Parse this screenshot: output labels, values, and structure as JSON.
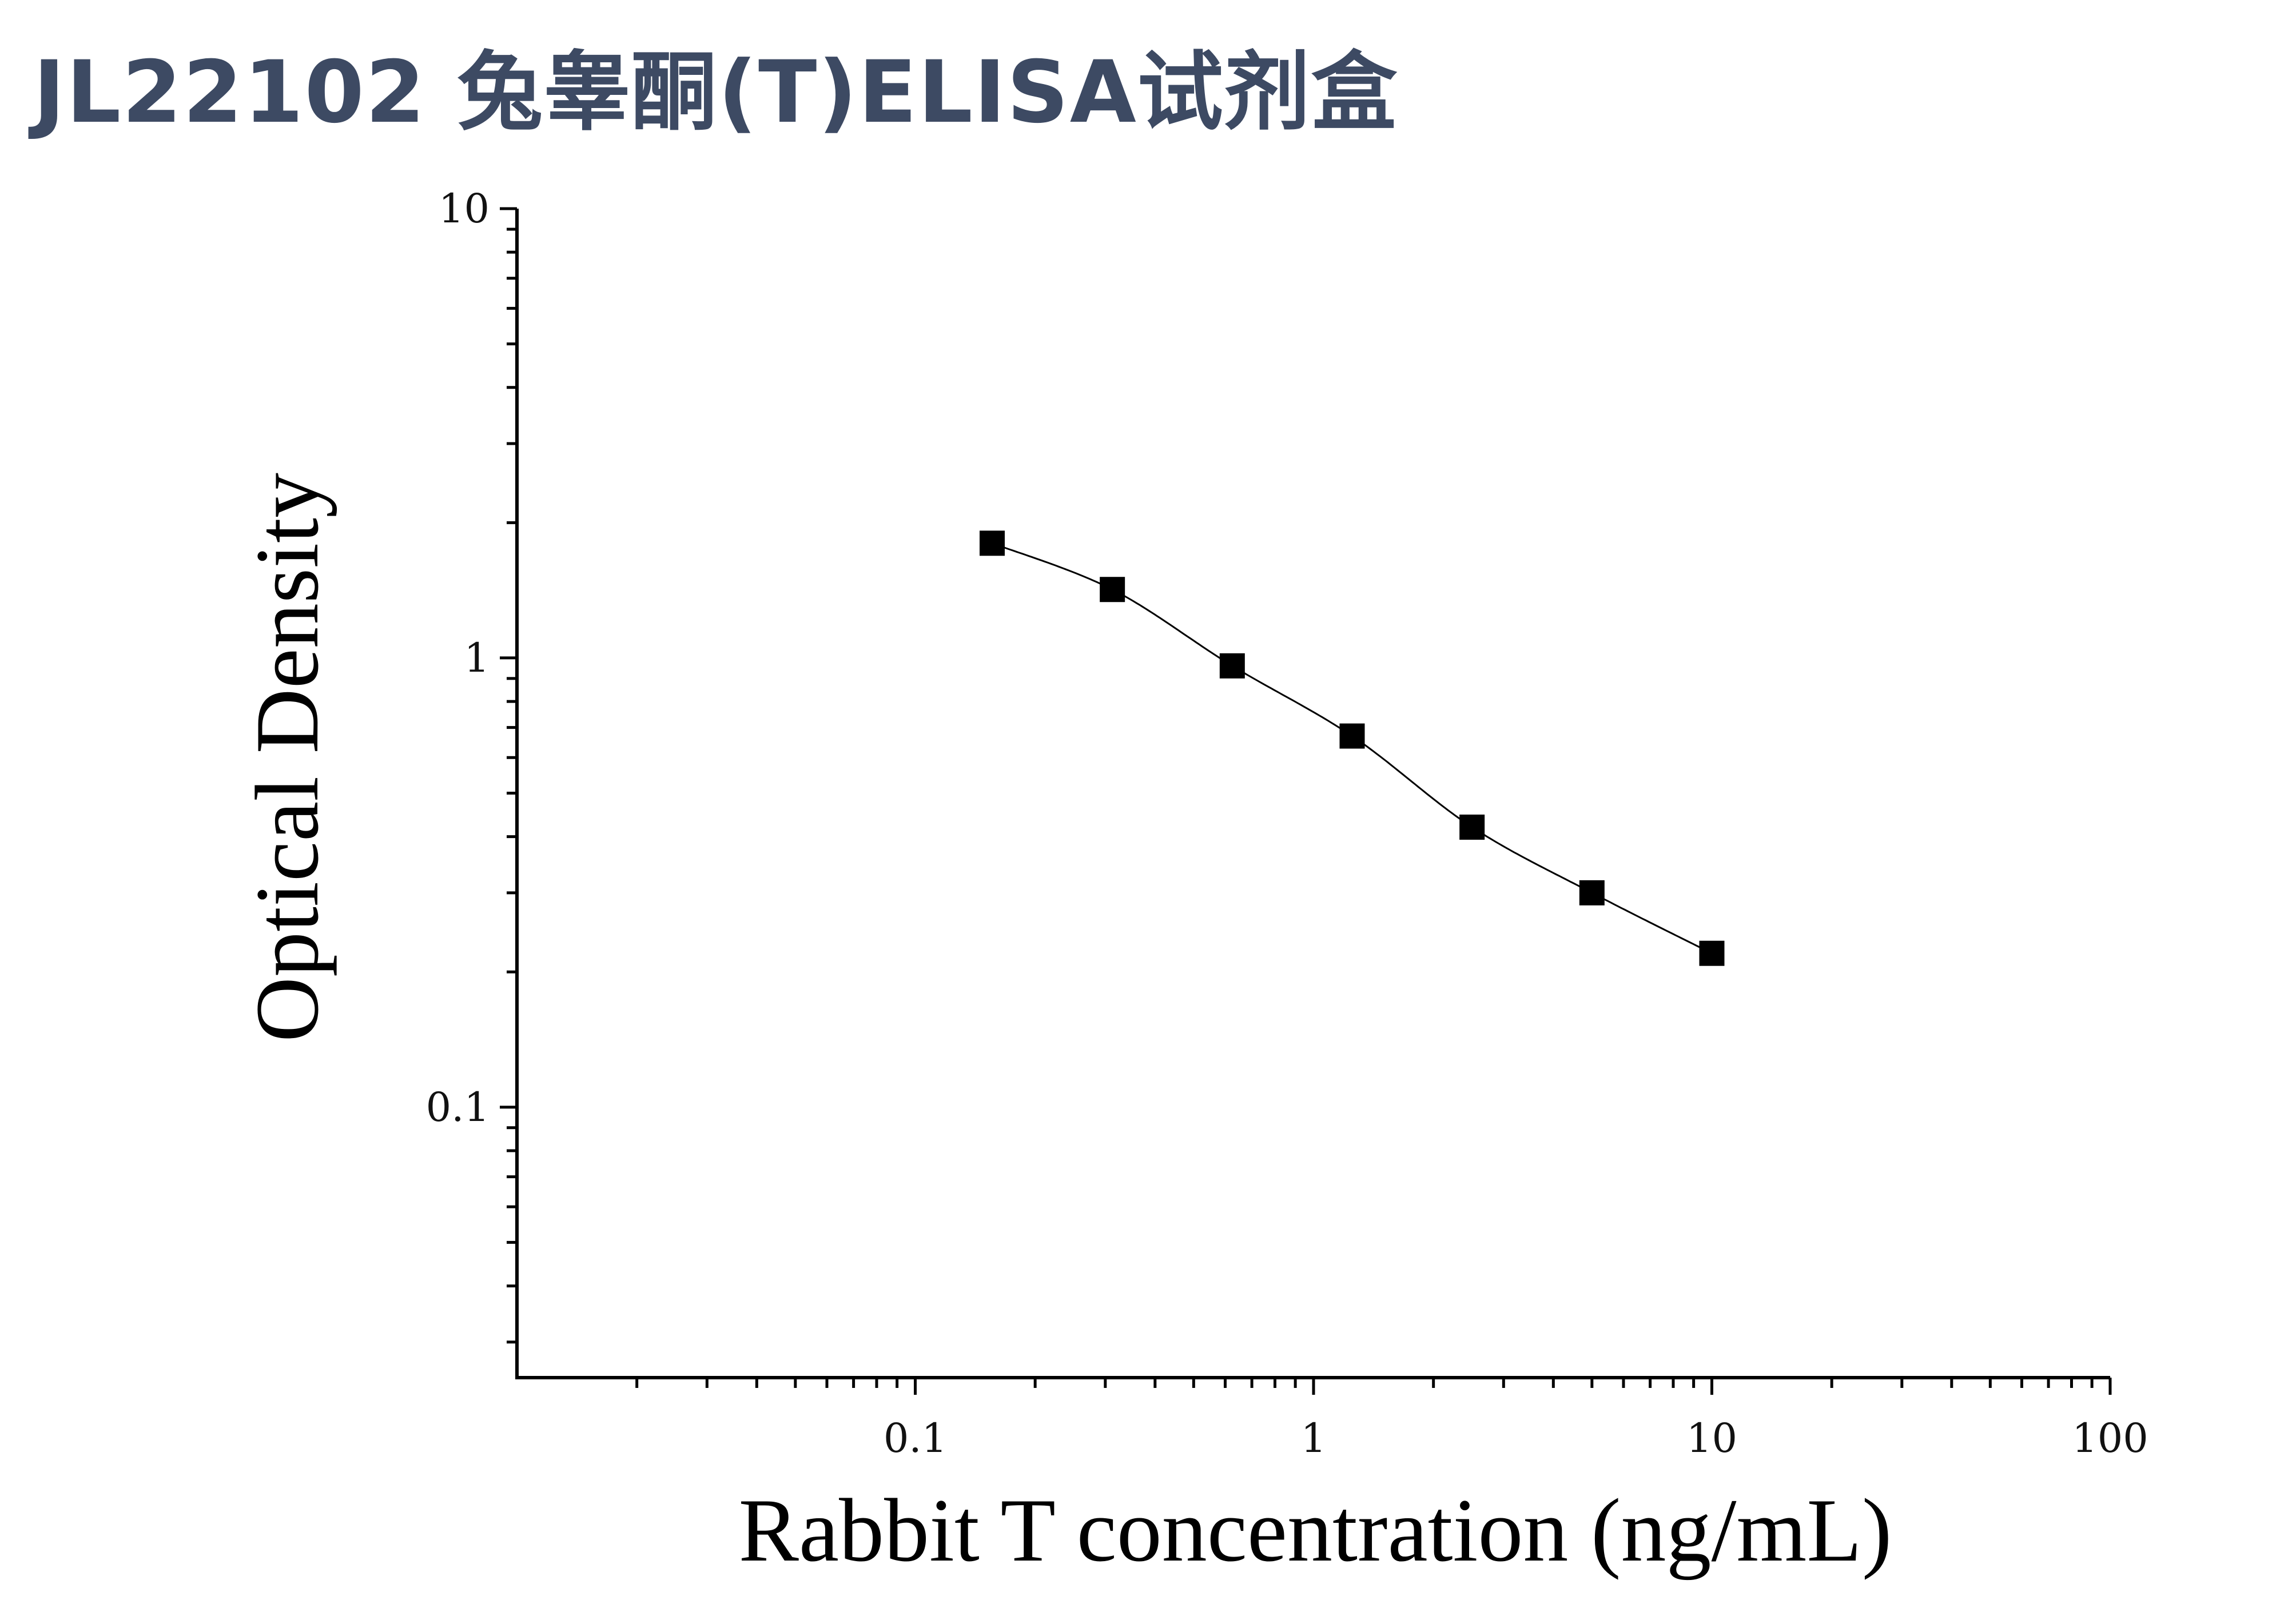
{
  "page_title": "JL22102 兔睾酮(T)ELISA试剂盒",
  "chart_data": {
    "type": "scatter",
    "title": "",
    "xlabel": "Rabbit T concentration (ng/mL)",
    "ylabel": "Optical Density",
    "x_scale": "log",
    "y_scale": "log",
    "xlim": [
      0.01,
      100
    ],
    "ylim": [
      0.025,
      10
    ],
    "x_ticks": [
      {
        "value": 0.1,
        "label": "0.1"
      },
      {
        "value": 1,
        "label": "1"
      },
      {
        "value": 10,
        "label": "10"
      },
      {
        "value": 100,
        "label": "100"
      }
    ],
    "y_ticks": [
      {
        "value": 0.1,
        "label": "0.1"
      },
      {
        "value": 1,
        "label": "1"
      },
      {
        "value": 10,
        "label": "10"
      }
    ],
    "grid": false,
    "legend": "none",
    "series": [
      {
        "x": [
          0.156,
          0.3125,
          0.625,
          1.25,
          2.5,
          5,
          10
        ],
        "y": [
          1.8,
          1.42,
          0.96,
          0.67,
          0.42,
          0.3,
          0.22
        ],
        "marker": "square",
        "color": "#000000",
        "fit_curve": true
      }
    ]
  }
}
